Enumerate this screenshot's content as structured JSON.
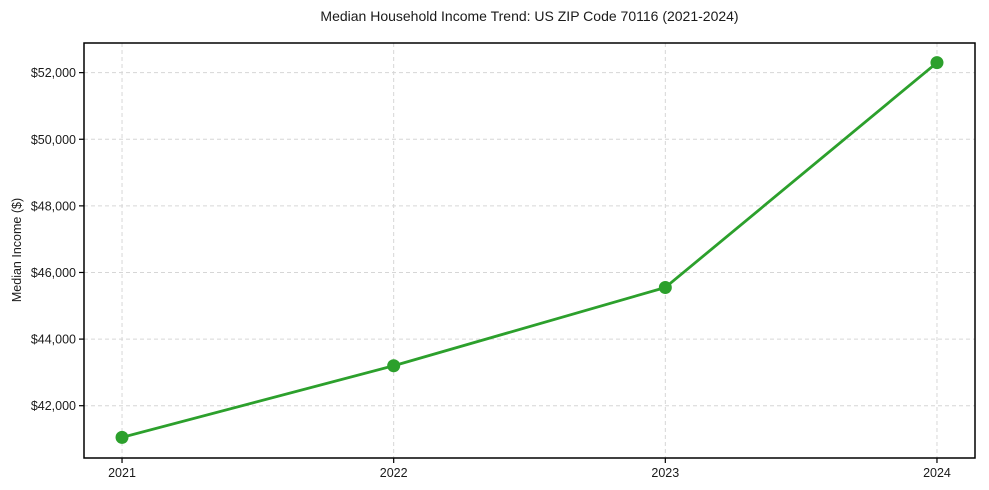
{
  "page": {
    "background_color": "#ffffff"
  },
  "chart_data": {
    "type": "line",
    "title": "Median Household Income Trend: US ZIP Code 70116 (2021-2024)",
    "xlabel": "",
    "ylabel": "Median Income ($)",
    "x": [
      2021,
      2022,
      2023,
      2024
    ],
    "x_tick_labels": [
      "2021",
      "2022",
      "2023",
      "2024"
    ],
    "values": [
      41050,
      43200,
      45550,
      52300
    ],
    "y_ticks": [
      42000,
      44000,
      46000,
      48000,
      50000,
      52000
    ],
    "y_tick_labels": [
      "$42,000",
      "$44,000",
      "$46,000",
      "$48,000",
      "$50,000",
      "$52,000"
    ],
    "xlim": [
      2020.86,
      2024.14
    ],
    "ylim": [
      40430,
      52890
    ],
    "grid": true,
    "legend": false,
    "styles": {
      "line_color": "#2ca02c",
      "marker_color": "#2ca02c",
      "grid_color": "#d6d6d6",
      "spine_color": "#000000",
      "tick_color": "#000000",
      "text_color": "#1a1a1a"
    }
  }
}
